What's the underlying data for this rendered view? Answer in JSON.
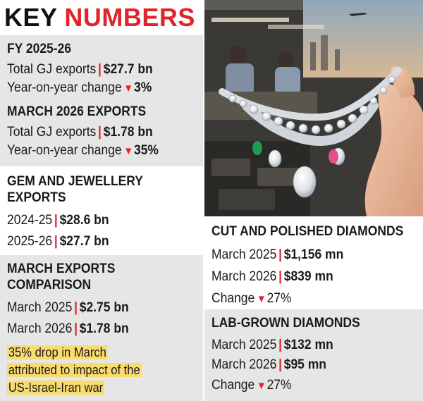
{
  "title": {
    "part1": "KEY",
    "part2": "NUMBERS"
  },
  "fy": {
    "heading": "FY 2025-26",
    "rows": [
      {
        "label": "Total GJ exports",
        "value": "$27.7 bn",
        "arrow": "",
        "plain": ""
      },
      {
        "label": "Year-on-year change",
        "value": "3%",
        "arrow": "▼",
        "plain": ""
      }
    ]
  },
  "march_exports": {
    "heading": "MARCH 2026 EXPORTS",
    "rows": [
      {
        "label": "Total GJ exports",
        "value": "$1.78 bn"
      },
      {
        "label": "Year-on-year change",
        "value": "35%",
        "arrow": "▼"
      }
    ]
  },
  "gem": {
    "heading_line1": "GEM AND JEWELLERY",
    "heading_line2": "EXPORTS",
    "rows": [
      {
        "label": "2024-25",
        "value": "$28.6 bn"
      },
      {
        "label": "2025-26",
        "value": "$27.7 bn"
      }
    ]
  },
  "comparison": {
    "heading_line1": "MARCH EXPORTS",
    "heading_line2": "COMPARISON",
    "rows": [
      {
        "label": "March 2025",
        "value": "$2.75 bn"
      },
      {
        "label": "March 2026",
        "value": "$1.78 bn"
      }
    ],
    "note_lines": [
      "35% drop in March",
      "attributed to impact of the",
      "US-Israel-Iran war"
    ]
  },
  "cut": {
    "heading": "CUT AND POLISHED DIAMONDS",
    "rows": [
      {
        "label": "March 2025",
        "value": "$1,156 mn"
      },
      {
        "label": "March 2026",
        "value": "$839 mn"
      }
    ],
    "change_label": "Change",
    "change_arrow": "▼",
    "change_value": "27%"
  },
  "lab": {
    "heading": "LAB-GROWN DIAMONDS",
    "rows": [
      {
        "label": "March 2025",
        "value": "$132 mn"
      },
      {
        "label": "March 2026",
        "value": "$95 mn"
      }
    ],
    "change_label": "Change",
    "change_arrow": "▼",
    "change_value": "27%"
  },
  "colors": {
    "accent_red": "#e0242b",
    "panel_gray": "#e6e6e6",
    "highlight": "#f9dc6e"
  },
  "photo": {
    "subject": "diamond-necklace-photo"
  }
}
